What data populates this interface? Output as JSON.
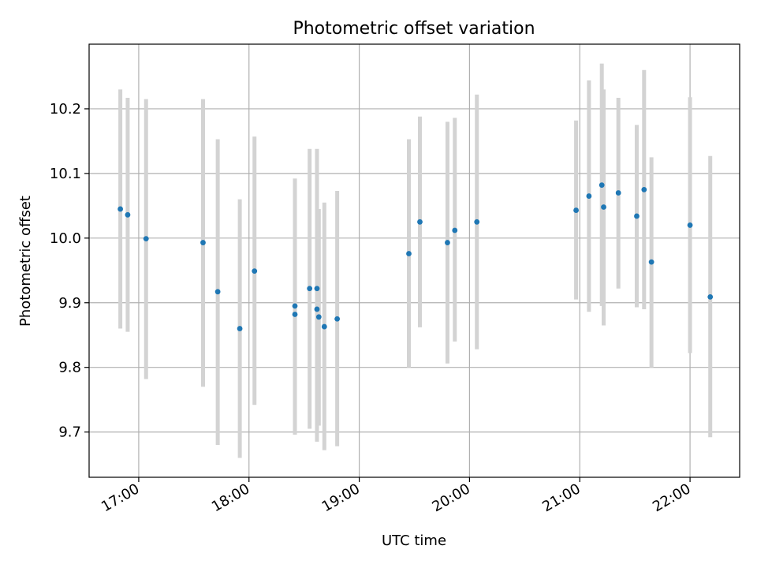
{
  "chart_data": {
    "type": "scatter",
    "title": "Photometric offset variation",
    "xlabel": "UTC time",
    "ylabel": "Photometric offset",
    "x_ticks": [
      "17:00",
      "18:00",
      "19:00",
      "20:00",
      "21:00",
      "22:00"
    ],
    "y_ticks": [
      "9.7",
      "9.8",
      "9.9",
      "10.0",
      "10.1",
      "10.2"
    ],
    "xlim": [
      "16:33",
      "22:27"
    ],
    "ylim": [
      9.63,
      10.3
    ],
    "grid": true,
    "colors": {
      "point": "#1f77b4",
      "errorbar": "#d3d3d3",
      "grid": "#b0b0b0"
    },
    "points": [
      {
        "t": "16:50",
        "y": 10.045,
        "low": 9.86,
        "high": 10.23
      },
      {
        "t": "16:54",
        "y": 10.036,
        "low": 9.855,
        "high": 10.217
      },
      {
        "t": "17:04",
        "y": 9.999,
        "low": 9.782,
        "high": 10.215
      },
      {
        "t": "17:35",
        "y": 9.993,
        "low": 9.77,
        "high": 10.215
      },
      {
        "t": "17:43",
        "y": 9.917,
        "low": 9.68,
        "high": 10.153
      },
      {
        "t": "17:55",
        "y": 9.86,
        "low": 9.66,
        "high": 10.06
      },
      {
        "t": "18:03",
        "y": 9.949,
        "low": 9.742,
        "high": 10.157
      },
      {
        "t": "18:25",
        "y": 9.895,
        "low": 9.696,
        "high": 10.092
      },
      {
        "t": "18:25",
        "y": 9.882,
        "low": 9.696,
        "high": 10.092
      },
      {
        "t": "18:33",
        "y": 9.922,
        "low": 9.705,
        "high": 10.138
      },
      {
        "t": "18:37",
        "y": 9.922,
        "low": 9.705,
        "high": 10.138
      },
      {
        "t": "18:37",
        "y": 9.89,
        "low": 9.685,
        "high": 10.094
      },
      {
        "t": "18:38",
        "y": 9.878,
        "low": 9.71,
        "high": 10.045
      },
      {
        "t": "18:41",
        "y": 9.863,
        "low": 9.672,
        "high": 10.055
      },
      {
        "t": "18:48",
        "y": 9.875,
        "low": 9.678,
        "high": 10.073
      },
      {
        "t": "19:27",
        "y": 9.976,
        "low": 9.8,
        "high": 10.153
      },
      {
        "t": "19:33",
        "y": 10.025,
        "low": 9.862,
        "high": 10.188
      },
      {
        "t": "19:48",
        "y": 9.993,
        "low": 9.806,
        "high": 10.18
      },
      {
        "t": "19:52",
        "y": 10.012,
        "low": 9.84,
        "high": 10.186
      },
      {
        "t": "20:04",
        "y": 10.025,
        "low": 9.828,
        "high": 10.222
      },
      {
        "t": "20:58",
        "y": 10.043,
        "low": 9.905,
        "high": 10.182
      },
      {
        "t": "21:05",
        "y": 10.065,
        "low": 9.886,
        "high": 10.244
      },
      {
        "t": "21:12",
        "y": 10.082,
        "low": 9.895,
        "high": 10.27
      },
      {
        "t": "21:13",
        "y": 10.048,
        "low": 9.865,
        "high": 10.23
      },
      {
        "t": "21:21",
        "y": 10.07,
        "low": 9.922,
        "high": 10.217
      },
      {
        "t": "21:31",
        "y": 10.034,
        "low": 9.893,
        "high": 10.175
      },
      {
        "t": "21:35",
        "y": 10.075,
        "low": 9.89,
        "high": 10.26
      },
      {
        "t": "21:39",
        "y": 9.963,
        "low": 9.8,
        "high": 10.125
      },
      {
        "t": "22:00",
        "y": 10.02,
        "low": 9.822,
        "high": 10.218
      },
      {
        "t": "22:11",
        "y": 9.909,
        "low": 9.692,
        "high": 10.127
      }
    ]
  }
}
